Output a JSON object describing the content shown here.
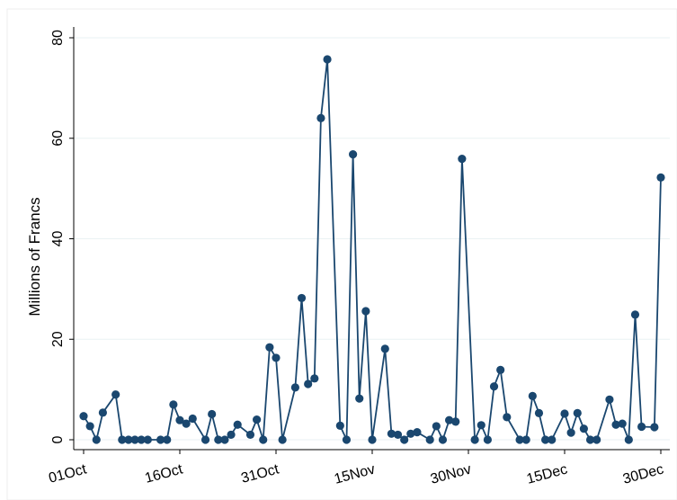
{
  "chart_data": {
    "type": "line",
    "title": "",
    "xlabel": "",
    "ylabel": "Millions of Francs",
    "ylim": [
      0,
      80
    ],
    "yticks": [
      0,
      20,
      40,
      60,
      80
    ],
    "xticks": [
      {
        "date": "2023-10-01",
        "label": "01Oct"
      },
      {
        "date": "2023-10-16",
        "label": "16Oct"
      },
      {
        "date": "2023-10-31",
        "label": "31Oct"
      },
      {
        "date": "2023-11-15",
        "label": "15Nov"
      },
      {
        "date": "2023-11-30",
        "label": "30Nov"
      },
      {
        "date": "2023-12-15",
        "label": "15Dec"
      },
      {
        "date": "2023-12-30",
        "label": "30Dec"
      }
    ],
    "xlim": [
      "2023-10-01",
      "2023-12-30"
    ],
    "grid": "horizontal",
    "marker_color": "#1a476f",
    "line_color": "#1a476f",
    "series": [
      {
        "points": [
          [
            "2023-10-01",
            4.7
          ],
          [
            "2023-10-02",
            2.7
          ],
          [
            "2023-10-03",
            0.0
          ],
          [
            "2023-10-04",
            5.4
          ],
          [
            "2023-10-06",
            9.0
          ],
          [
            "2023-10-07",
            0.0
          ],
          [
            "2023-10-08",
            0.0
          ],
          [
            "2023-10-09",
            0.0
          ],
          [
            "2023-10-10",
            0.0
          ],
          [
            "2023-10-11",
            0.0
          ],
          [
            "2023-10-13",
            0.0
          ],
          [
            "2023-10-14",
            0.0
          ],
          [
            "2023-10-15",
            7.0
          ],
          [
            "2023-10-16",
            3.9
          ],
          [
            "2023-10-17",
            3.2
          ],
          [
            "2023-10-18",
            4.2
          ],
          [
            "2023-10-20",
            0.0
          ],
          [
            "2023-10-21",
            5.1
          ],
          [
            "2023-10-22",
            0.0
          ],
          [
            "2023-10-23",
            0.0
          ],
          [
            "2023-10-24",
            1.0
          ],
          [
            "2023-10-25",
            3.0
          ],
          [
            "2023-10-27",
            1.0
          ],
          [
            "2023-10-28",
            4.0
          ],
          [
            "2023-10-29",
            0.0
          ],
          [
            "2023-10-30",
            18.4
          ],
          [
            "2023-10-31",
            16.3
          ],
          [
            "2023-11-01",
            0.0
          ],
          [
            "2023-11-03",
            10.4
          ],
          [
            "2023-11-04",
            28.2
          ],
          [
            "2023-11-05",
            11.1
          ],
          [
            "2023-11-06",
            12.2
          ],
          [
            "2023-11-07",
            64.0
          ],
          [
            "2023-11-08",
            75.7
          ],
          [
            "2023-11-10",
            2.8
          ],
          [
            "2023-11-11",
            0.0
          ],
          [
            "2023-11-12",
            56.8
          ],
          [
            "2023-11-13",
            8.2
          ],
          [
            "2023-11-14",
            25.6
          ],
          [
            "2023-11-15",
            0.0
          ],
          [
            "2023-11-17",
            18.1
          ],
          [
            "2023-11-18",
            1.2
          ],
          [
            "2023-11-19",
            1.0
          ],
          [
            "2023-11-20",
            0.0
          ],
          [
            "2023-11-21",
            1.2
          ],
          [
            "2023-11-22",
            1.5
          ],
          [
            "2023-11-24",
            0.0
          ],
          [
            "2023-11-25",
            2.7
          ],
          [
            "2023-11-26",
            0.0
          ],
          [
            "2023-11-27",
            3.9
          ],
          [
            "2023-11-28",
            3.6
          ],
          [
            "2023-11-29",
            55.9
          ],
          [
            "2023-12-01",
            0.0
          ],
          [
            "2023-12-02",
            2.9
          ],
          [
            "2023-12-03",
            0.0
          ],
          [
            "2023-12-04",
            10.6
          ],
          [
            "2023-12-05",
            13.9
          ],
          [
            "2023-12-06",
            4.5
          ],
          [
            "2023-12-08",
            0.0
          ],
          [
            "2023-12-09",
            0.0
          ],
          [
            "2023-12-10",
            8.7
          ],
          [
            "2023-12-11",
            5.3
          ],
          [
            "2023-12-12",
            0.0
          ],
          [
            "2023-12-13",
            0.0
          ],
          [
            "2023-12-15",
            5.2
          ],
          [
            "2023-12-16",
            1.4
          ],
          [
            "2023-12-17",
            5.3
          ],
          [
            "2023-12-18",
            2.2
          ],
          [
            "2023-12-19",
            0.0
          ],
          [
            "2023-12-20",
            0.0
          ],
          [
            "2023-12-22",
            8.0
          ],
          [
            "2023-12-23",
            3.0
          ],
          [
            "2023-12-24",
            3.2
          ],
          [
            "2023-12-25",
            0.0
          ],
          [
            "2023-12-26",
            24.9
          ],
          [
            "2023-12-27",
            2.6
          ],
          [
            "2023-12-29",
            2.5
          ],
          [
            "2023-12-30",
            52.2
          ]
        ]
      }
    ]
  }
}
